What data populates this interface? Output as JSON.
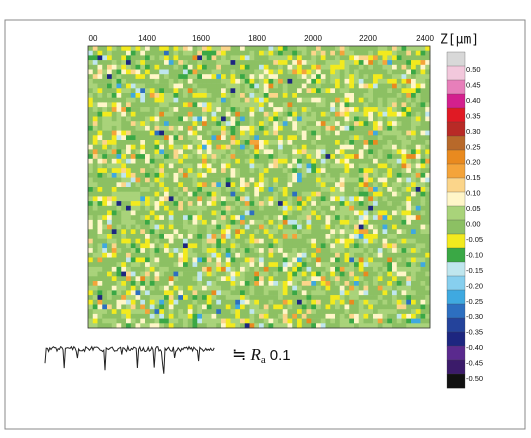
{
  "map": {
    "x_tick_labels": [
      "00",
      "1400",
      "1600",
      "1800",
      "2000",
      "2200",
      "2400"
    ]
  },
  "colorbar": {
    "title": "Z[μm]",
    "labels": [
      "0.50",
      "0.45",
      "0.40",
      "0.35",
      "0.30",
      "0.25",
      "0.20",
      "0.15",
      "0.10",
      "0.05",
      "0.00",
      "-0.05",
      "-0.10",
      "-0.15",
      "-0.20",
      "-0.25",
      "-0.30",
      "-0.35",
      "-0.40",
      "-0.45",
      "-0.50"
    ],
    "colors": [
      "#d8d8d8",
      "#f2c8dc",
      "#e77fba",
      "#d3208e",
      "#e01a24",
      "#b82a26",
      "#b8692a",
      "#e98a1f",
      "#f4a43a",
      "#fbd58a",
      "#fff6c8",
      "#a9d37a",
      "#8cc063",
      "#f2ea1e",
      "#3aa845",
      "#bfe6ee",
      "#87cfee",
      "#3fa9e0",
      "#2d6fc0",
      "#24439b",
      "#1d2680",
      "#5a2a8e",
      "#3b1b6a",
      "#111111"
    ]
  },
  "annotation": {
    "symbol": "≒",
    "variable": "R",
    "subscript": "a",
    "value": "0.1"
  }
}
